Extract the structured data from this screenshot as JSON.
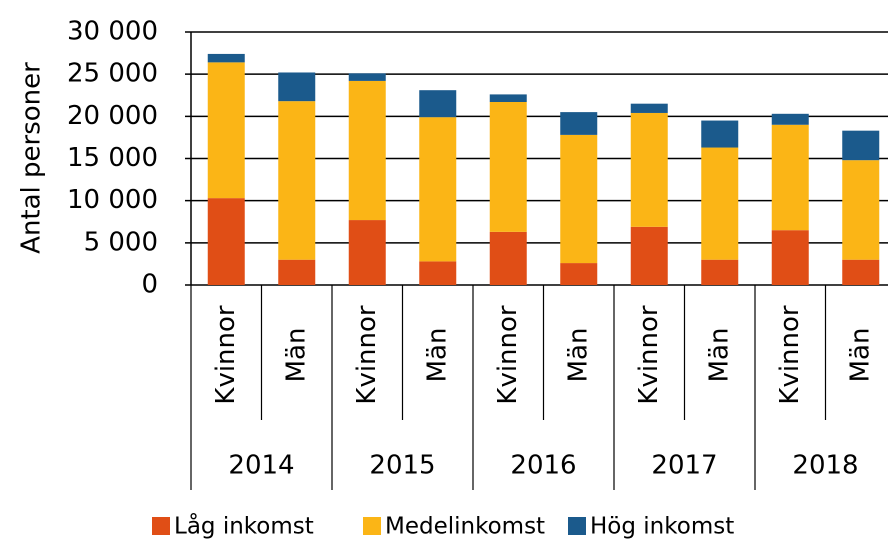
{
  "chart_data": {
    "type": "stacked_bar",
    "ylabel": "Antal personer",
    "groups": [
      "2014",
      "2015",
      "2016",
      "2017",
      "2018"
    ],
    "categories": [
      "Kvinnor",
      "Män",
      "Kvinnor",
      "Män",
      "Kvinnor",
      "Män",
      "Kvinnor",
      "Män",
      "Kvinnor",
      "Män"
    ],
    "series": [
      {
        "name": "Låg inkomst",
        "color": "#e04e16",
        "values": [
          10300,
          3000,
          7700,
          2800,
          6300,
          2600,
          6900,
          3000,
          6500,
          3000
        ]
      },
      {
        "name": "Medelinkomst",
        "color": "#fbb516",
        "values": [
          16100,
          18800,
          16500,
          17100,
          15400,
          15200,
          13500,
          13300,
          12500,
          11800
        ]
      },
      {
        "name": "Hög inkomst",
        "color": "#1b5a8c",
        "values": [
          1000,
          3400,
          900,
          3200,
          900,
          2700,
          1100,
          3200,
          1300,
          3500
        ]
      }
    ],
    "ylim": [
      0,
      30000
    ],
    "yticks": [
      0,
      {
        "value": 5000,
        "label": "5 000"
      },
      {
        "value": 10000,
        "label": "10 000"
      },
      {
        "value": 15000,
        "label": "15 000"
      },
      {
        "value": 20000,
        "label": "20 000"
      },
      {
        "value": 25000,
        "label": "25 000"
      },
      {
        "value": 30000,
        "label": "30 000"
      }
    ],
    "grid": true
  }
}
